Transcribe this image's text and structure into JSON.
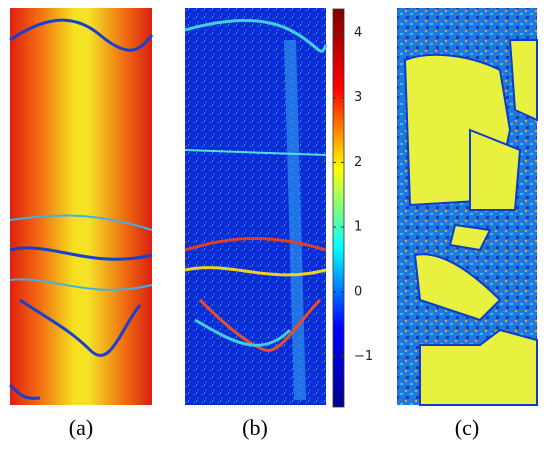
{
  "chart_data": {
    "type": "colorbar",
    "colormap": "jet",
    "panels": [
      "(a)",
      "(b)",
      "(c)"
    ],
    "ylim": [
      -1.78,
      4.37
    ],
    "yticks": [
      {
        "value": -1,
        "label": "−1"
      },
      0,
      1,
      2,
      3,
      4
    ]
  }
}
